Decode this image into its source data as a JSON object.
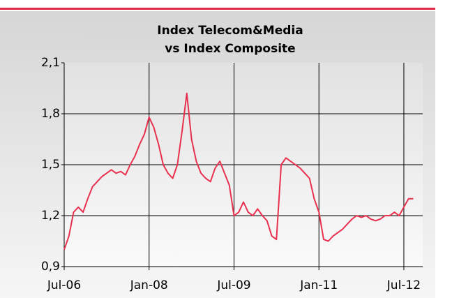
{
  "chart_data": {
    "type": "line",
    "title": [
      "Index Telecom&Media",
      "vs Index Composite"
    ],
    "x": [
      "Jul-06",
      "Aug-06",
      "Sep-06",
      "Oct-06",
      "Nov-06",
      "Dec-06",
      "Jan-07",
      "Feb-07",
      "Mar-07",
      "Apr-07",
      "May-07",
      "Jun-07",
      "Jul-07",
      "Aug-07",
      "Sep-07",
      "Oct-07",
      "Nov-07",
      "Dec-07",
      "Jan-08",
      "Feb-08",
      "Mar-08",
      "Apr-08",
      "May-08",
      "Jun-08",
      "Jul-08",
      "Aug-08",
      "Sep-08",
      "Oct-08",
      "Nov-08",
      "Dec-08",
      "Jan-09",
      "Feb-09",
      "Mar-09",
      "Apr-09",
      "May-09",
      "Jun-09",
      "Jul-09",
      "Aug-09",
      "Sep-09",
      "Oct-09",
      "Nov-09",
      "Dec-09",
      "Jan-10",
      "Feb-10",
      "Mar-10",
      "Apr-10",
      "May-10",
      "Jun-10",
      "Jul-10",
      "Aug-10",
      "Sep-10",
      "Oct-10",
      "Nov-10",
      "Dec-10",
      "Jan-11",
      "Feb-11",
      "Mar-11",
      "Apr-11",
      "May-11",
      "Jun-11",
      "Jul-11",
      "Aug-11",
      "Sep-11",
      "Oct-11",
      "Nov-11",
      "Dec-11",
      "Jan-12",
      "Feb-12",
      "Mar-12",
      "Apr-12",
      "May-12",
      "Jun-12",
      "Jul-12",
      "Aug-12",
      "Sep-12"
    ],
    "series": [
      {
        "color": "#e8314f",
        "values": [
          1.0,
          1.08,
          1.22,
          1.25,
          1.22,
          1.3,
          1.37,
          1.4,
          1.43,
          1.45,
          1.47,
          1.45,
          1.46,
          1.44,
          1.5,
          1.55,
          1.62,
          1.68,
          1.78,
          1.72,
          1.62,
          1.5,
          1.45,
          1.42,
          1.5,
          1.7,
          1.92,
          1.65,
          1.52,
          1.45,
          1.42,
          1.4,
          1.48,
          1.52,
          1.45,
          1.38,
          1.2,
          1.22,
          1.28,
          1.22,
          1.2,
          1.24,
          1.2,
          1.17,
          1.08,
          1.06,
          1.5,
          1.54,
          1.52,
          1.5,
          1.48,
          1.45,
          1.42,
          1.3,
          1.22,
          1.06,
          1.05,
          1.08,
          1.1,
          1.12,
          1.15,
          1.18,
          1.2,
          1.19,
          1.2,
          1.18,
          1.17,
          1.18,
          1.2,
          1.2,
          1.22,
          1.2,
          1.25,
          1.3,
          1.3
        ]
      }
    ],
    "xlim": [
      "Jul-06",
      "Nov-12"
    ],
    "xticks": [
      "Jul-06",
      "Jan-08",
      "Jul-09",
      "Jan-11",
      "Jul-12"
    ],
    "ylim": [
      0.9,
      2.1
    ],
    "yticks": [
      {
        "value": 0.9,
        "label": "0,9"
      },
      {
        "value": 1.2,
        "label": "1,2"
      },
      {
        "value": 1.5,
        "label": "1,5"
      },
      {
        "value": 1.8,
        "label": "1,8"
      },
      {
        "value": 2.1,
        "label": "2,1"
      }
    ],
    "grid": true
  }
}
